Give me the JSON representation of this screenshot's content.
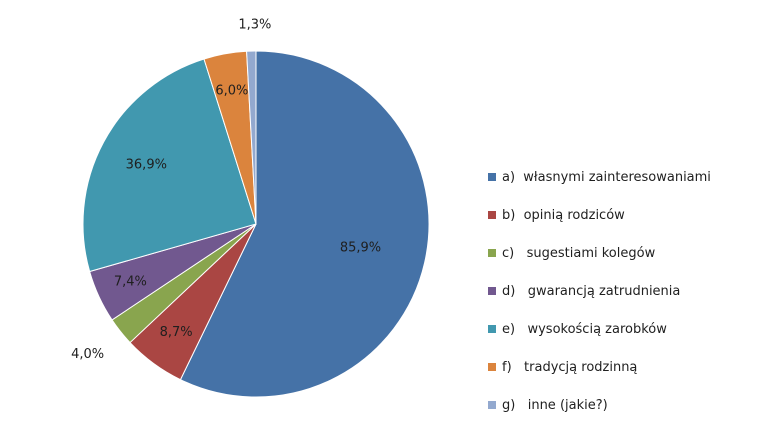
{
  "chart_data": {
    "type": "pie",
    "slices": [
      {
        "label": "a)  własnymi zainteresowaniami",
        "value": 85.9,
        "data_label": "85,9%",
        "color": "#4572A7"
      },
      {
        "label": "b)  opinią rodziców",
        "value": 8.7,
        "data_label": "8,7%",
        "color": "#AA4643"
      },
      {
        "label": "c)   sugestiami kolegów",
        "value": 4.0,
        "data_label": "4,0%",
        "color": "#89A54E"
      },
      {
        "label": "d)   gwarancją zatrudnienia",
        "value": 7.4,
        "data_label": "7,4%",
        "color": "#71588F"
      },
      {
        "label": "e)   wysokością zarobków",
        "value": 36.9,
        "data_label": "36,9%",
        "color": "#4198AF"
      },
      {
        "label": "f)   tradycją rodzinną",
        "value": 6.0,
        "data_label": "6,0%",
        "color": "#DB843D"
      },
      {
        "label": "g)   inne (jakie?)",
        "value": 1.3,
        "data_label": "1,3%",
        "color": "#93A9CF"
      }
    ],
    "legend_position": "right",
    "start_angle_deg": 0,
    "direction": "clockwise"
  }
}
